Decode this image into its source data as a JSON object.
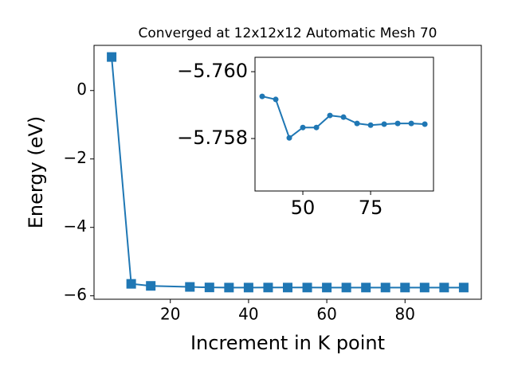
{
  "chart_data": [
    {
      "type": "line",
      "title": "Converged at 12x12x12 Automatic Mesh 70",
      "x_label": "Increment in K point",
      "y_label": "Energy (eV)",
      "series": [
        {
          "color": "#1f77b4",
          "marker": "square",
          "x": [
            5,
            10,
            15,
            25,
            30,
            35,
            40,
            45,
            50,
            55,
            60,
            65,
            70,
            75,
            80,
            85,
            90,
            95
          ],
          "values": [
            0.98,
            -5.65,
            -5.71,
            -5.74,
            -5.755,
            -5.7593,
            -5.7592,
            -5.758,
            -5.7583,
            -5.7583,
            -5.7587,
            -5.7586,
            -5.7585,
            -5.7584,
            -5.7584,
            -5.7585,
            -5.7585,
            -5.7584
          ]
        }
      ],
      "xlim": [
        0.5,
        99.5
      ],
      "xticks": [
        20,
        40,
        60,
        80
      ],
      "ylim": [
        -6.1,
        1.32
      ],
      "yticks": [
        {
          "value": -6,
          "label": "−6"
        },
        {
          "value": -4,
          "label": "−4"
        },
        {
          "value": -2,
          "label": "−2"
        },
        0
      ]
    },
    {
      "type": "line",
      "series": [
        {
          "color": "#1f77b4",
          "marker": "circle",
          "x": [
            35,
            40,
            45,
            50,
            55,
            60,
            65,
            70,
            75,
            80,
            85,
            90,
            95
          ],
          "values": [
            -5.75926,
            -5.75917,
            -5.75802,
            -5.75833,
            -5.75833,
            -5.75869,
            -5.75864,
            -5.75845,
            -5.7584,
            -5.75843,
            -5.75845,
            -5.75845,
            -5.75843
          ]
        }
      ],
      "xlim": [
        32.35,
        98.2
      ],
      "xticks": [
        50,
        75
      ],
      "ylim": [
        -5.75643,
        -5.76043
      ],
      "yticks": [
        {
          "value": -5.76,
          "label": "−5.760"
        },
        {
          "value": -5.758,
          "label": "−5.758"
        }
      ]
    }
  ]
}
